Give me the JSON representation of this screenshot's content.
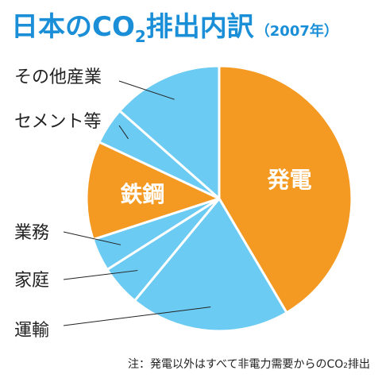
{
  "title": {
    "main_before": "日本のCO",
    "sub": "2",
    "main_after": "排出内訳",
    "year": "（2007年）"
  },
  "footnote": {
    "before": "注：発電以外はすべて非電力需要からのCO",
    "sub": "2",
    "after": "排出"
  },
  "colors": {
    "blue": "#6ccbf3",
    "orange": "#f49a22",
    "title_blue": "#1a8fd8"
  },
  "chart_data": {
    "type": "pie",
    "title": "日本のCO2排出内訳（2007年）",
    "start": "12 o'clock, clockwise",
    "slices": [
      {
        "label": "発電",
        "value": 41.5,
        "color": "#f49a22",
        "label_inside": true
      },
      {
        "label": "運輸",
        "value": 19.5,
        "color": "#6ccbf3",
        "label_inside": false
      },
      {
        "label": "家庭",
        "value": 5.0,
        "color": "#6ccbf3",
        "label_inside": false
      },
      {
        "label": "業務",
        "value": 4.0,
        "color": "#6ccbf3",
        "label_inside": false
      },
      {
        "label": "鉄鋼",
        "value": 12.0,
        "color": "#f49a22",
        "label_inside": true
      },
      {
        "label": "セメント等",
        "value": 4.5,
        "color": "#6ccbf3",
        "label_inside": false
      },
      {
        "label": "その他産業",
        "value": 13.5,
        "color": "#6ccbf3",
        "label_inside": false
      }
    ]
  }
}
